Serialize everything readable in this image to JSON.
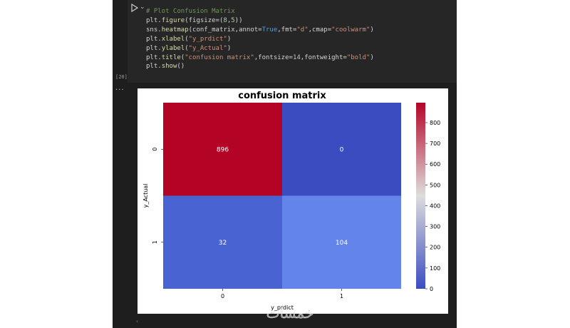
{
  "cell": {
    "exec_count": "[20]",
    "code_lines": [
      {
        "parts": [
          {
            "t": "# Plot Confusion Matrix",
            "c": "cm"
          }
        ]
      },
      {
        "parts": [
          {
            "t": "plt.",
            "c": ""
          },
          {
            "t": "figure",
            "c": "fn"
          },
          {
            "t": "(figsize=(",
            "c": ""
          },
          {
            "t": "8",
            "c": "num"
          },
          {
            "t": ",",
            "c": ""
          },
          {
            "t": "5",
            "c": "num"
          },
          {
            "t": "))",
            "c": ""
          }
        ]
      },
      {
        "parts": [
          {
            "t": "sns.",
            "c": ""
          },
          {
            "t": "heatmap",
            "c": "fn"
          },
          {
            "t": "(conf_matrix,annot=",
            "c": ""
          },
          {
            "t": "True",
            "c": "kw"
          },
          {
            "t": ",fmt=",
            "c": ""
          },
          {
            "t": "\"d\"",
            "c": "str"
          },
          {
            "t": ",cmap=",
            "c": ""
          },
          {
            "t": "\"coolwarm\"",
            "c": "str"
          },
          {
            "t": ")",
            "c": ""
          }
        ]
      },
      {
        "parts": [
          {
            "t": "plt.",
            "c": ""
          },
          {
            "t": "xlabel",
            "c": "fn"
          },
          {
            "t": "(",
            "c": ""
          },
          {
            "t": "\"y_prdict\"",
            "c": "str"
          },
          {
            "t": ")",
            "c": ""
          }
        ]
      },
      {
        "parts": [
          {
            "t": "plt.",
            "c": ""
          },
          {
            "t": "ylabel",
            "c": "fn"
          },
          {
            "t": "(",
            "c": ""
          },
          {
            "t": "\"y_Actual\"",
            "c": "str"
          },
          {
            "t": ")",
            "c": ""
          }
        ]
      },
      {
        "parts": [
          {
            "t": "plt.",
            "c": ""
          },
          {
            "t": "title",
            "c": "fn"
          },
          {
            "t": "(",
            "c": ""
          },
          {
            "t": "\"confusion matrix\"",
            "c": "str"
          },
          {
            "t": ",fontsize=",
            "c": ""
          },
          {
            "t": "14",
            "c": "num"
          },
          {
            "t": ",fontweight=",
            "c": ""
          },
          {
            "t": "\"bold\"",
            "c": "str"
          },
          {
            "t": ")",
            "c": ""
          }
        ]
      },
      {
        "parts": [
          {
            "t": "plt.",
            "c": ""
          },
          {
            "t": "show",
            "c": "fn"
          },
          {
            "t": "()",
            "c": ""
          }
        ]
      }
    ]
  },
  "output": {
    "menu_label": "···"
  },
  "chart_data": {
    "type": "heatmap",
    "title": "confusion matrix",
    "xlabel": "y_prdict",
    "ylabel": "y_Actual",
    "x_categories": [
      "0",
      "1"
    ],
    "y_categories": [
      "0",
      "1"
    ],
    "values": [
      [
        896,
        0
      ],
      [
        32,
        104
      ]
    ],
    "colormap": "coolwarm",
    "colorbar": {
      "ticks": [
        0,
        100,
        200,
        300,
        400,
        500,
        600,
        700,
        800
      ],
      "range": [
        0,
        896
      ]
    },
    "cell_colors": [
      [
        "#b40426",
        "#3b4cc0"
      ],
      [
        "#4a63d3",
        "#6384eb"
      ]
    ]
  },
  "watermark": "خمسات",
  "colors": {
    "notebook_bg": "#1e1e1e",
    "cell_bg": "#262626",
    "accent_run": "#cccccc"
  }
}
